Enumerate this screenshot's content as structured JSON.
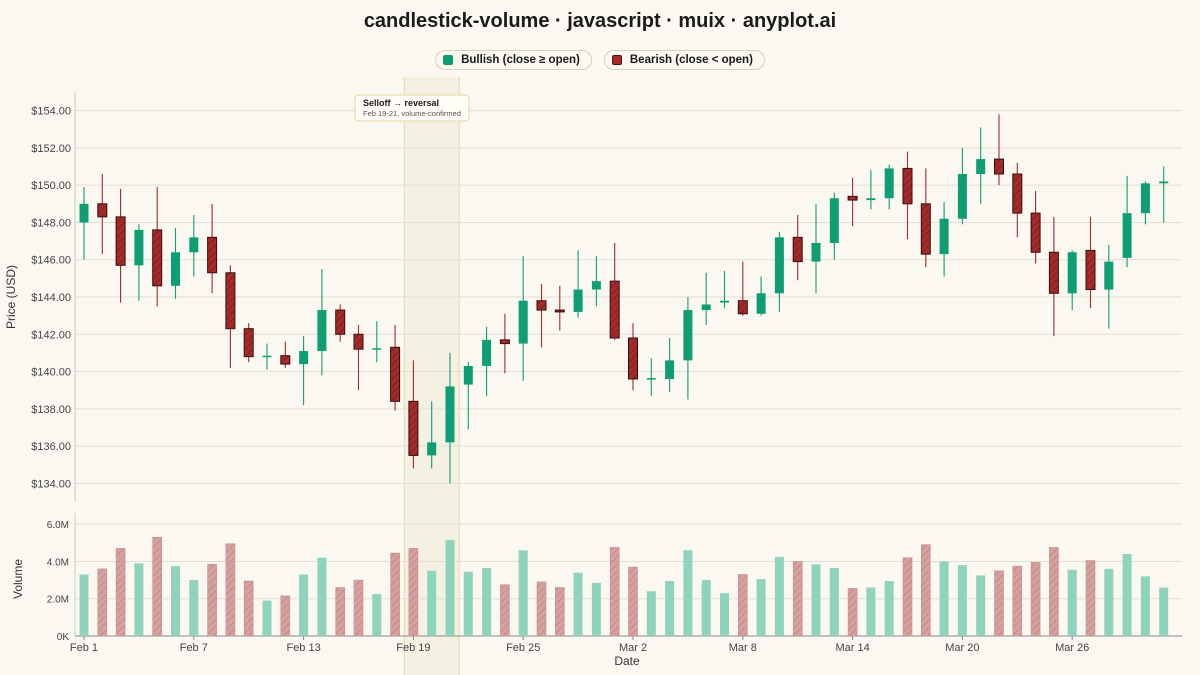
{
  "title": "candlestick-volume · javascript · muix · anyplot.ai",
  "legend": {
    "bullish_label": "Bullish (close ≥ open)",
    "bearish_label": "Bearish (close < open)"
  },
  "colors": {
    "bullish": "#0E9E74",
    "bearish": "#A52A2A",
    "bullish_volume": "#8FD3BC",
    "bearish_volume": "#D6A0A0",
    "grid": "#E3DFD4",
    "annotation_band": "#F2EEDC",
    "annotation_border": "#E2D49A"
  },
  "annotation": {
    "title": "Selloff → reversal",
    "subtitle": "Feb 19-21, volume-confirmed",
    "start_index": 18,
    "end_index": 20
  },
  "chart_data": {
    "type": "candlestick",
    "xlabel": "Date",
    "price_ylabel": "Price (USD)",
    "volume_ylabel": "Volume",
    "price_ylim": [
      133,
      155
    ],
    "volume_ylim": [
      0,
      6.6
    ],
    "price_ticks": [
      "$134.00",
      "$136.00",
      "$138.00",
      "$140.00",
      "$142.00",
      "$144.00",
      "$146.00",
      "$148.00",
      "$150.00",
      "$152.00",
      "$154.00"
    ],
    "price_tick_values": [
      134,
      136,
      138,
      140,
      142,
      144,
      146,
      148,
      150,
      152,
      154
    ],
    "volume_ticks": [
      "0K",
      "2.0M",
      "4.0M",
      "6.0M"
    ],
    "volume_tick_values": [
      0,
      2,
      4,
      6
    ],
    "x_tick_labels": [
      {
        "index": 0,
        "label": "Feb 1"
      },
      {
        "index": 6,
        "label": "Feb 7"
      },
      {
        "index": 12,
        "label": "Feb 13"
      },
      {
        "index": 18,
        "label": "Feb 19"
      },
      {
        "index": 24,
        "label": "Feb 25"
      },
      {
        "index": 30,
        "label": "Mar 2"
      },
      {
        "index": 36,
        "label": "Mar 8"
      },
      {
        "index": 42,
        "label": "Mar 14"
      },
      {
        "index": 48,
        "label": "Mar 20"
      },
      {
        "index": 54,
        "label": "Mar 26"
      }
    ],
    "candles": [
      {
        "o": 148.0,
        "h": 149.9,
        "l": 146.0,
        "c": 149.0,
        "v": 3.3
      },
      {
        "o": 149.0,
        "h": 150.6,
        "l": 146.3,
        "c": 148.3,
        "v": 3.6
      },
      {
        "o": 148.3,
        "h": 149.8,
        "l": 143.7,
        "c": 145.7,
        "v": 4.7
      },
      {
        "o": 145.7,
        "h": 147.9,
        "l": 143.8,
        "c": 147.6,
        "v": 3.9
      },
      {
        "o": 147.6,
        "h": 149.9,
        "l": 143.5,
        "c": 144.6,
        "v": 5.3
      },
      {
        "o": 144.6,
        "h": 147.7,
        "l": 143.9,
        "c": 146.4,
        "v": 3.75
      },
      {
        "o": 146.4,
        "h": 148.4,
        "l": 145.1,
        "c": 147.2,
        "v": 3.0
      },
      {
        "o": 147.2,
        "h": 149.0,
        "l": 144.2,
        "c": 145.3,
        "v": 3.85
      },
      {
        "o": 145.3,
        "h": 145.7,
        "l": 140.2,
        "c": 142.3,
        "v": 4.95
      },
      {
        "o": 142.3,
        "h": 142.6,
        "l": 140.5,
        "c": 140.8,
        "v": 2.95
      },
      {
        "o": 140.8,
        "h": 141.5,
        "l": 140.1,
        "c": 140.85,
        "v": 1.9
      },
      {
        "o": 140.85,
        "h": 141.6,
        "l": 140.2,
        "c": 140.4,
        "v": 2.15
      },
      {
        "o": 140.4,
        "h": 141.9,
        "l": 138.2,
        "c": 141.1,
        "v": 3.3
      },
      {
        "o": 141.1,
        "h": 145.5,
        "l": 139.8,
        "c": 143.3,
        "v": 4.2
      },
      {
        "o": 143.3,
        "h": 143.6,
        "l": 141.6,
        "c": 142.0,
        "v": 2.6
      },
      {
        "o": 142.0,
        "h": 142.5,
        "l": 139.0,
        "c": 141.2,
        "v": 3.0
      },
      {
        "o": 141.2,
        "h": 142.7,
        "l": 140.5,
        "c": 141.25,
        "v": 2.25
      },
      {
        "o": 141.3,
        "h": 142.5,
        "l": 137.9,
        "c": 138.4,
        "v": 4.45
      },
      {
        "o": 138.4,
        "h": 140.6,
        "l": 134.8,
        "c": 135.5,
        "v": 4.7
      },
      {
        "o": 135.5,
        "h": 138.4,
        "l": 134.8,
        "c": 136.2,
        "v": 3.5
      },
      {
        "o": 136.2,
        "h": 141.0,
        "l": 134.0,
        "c": 139.2,
        "v": 5.15
      },
      {
        "o": 139.3,
        "h": 140.5,
        "l": 136.9,
        "c": 140.3,
        "v": 3.45
      },
      {
        "o": 140.3,
        "h": 142.4,
        "l": 138.7,
        "c": 141.7,
        "v": 3.65
      },
      {
        "o": 141.7,
        "h": 143.1,
        "l": 139.9,
        "c": 141.5,
        "v": 2.75
      },
      {
        "o": 141.5,
        "h": 146.2,
        "l": 139.5,
        "c": 143.8,
        "v": 4.6
      },
      {
        "o": 143.8,
        "h": 144.7,
        "l": 141.3,
        "c": 143.3,
        "v": 2.9
      },
      {
        "o": 143.3,
        "h": 144.6,
        "l": 142.2,
        "c": 143.2,
        "v": 2.6
      },
      {
        "o": 143.2,
        "h": 146.5,
        "l": 142.9,
        "c": 144.4,
        "v": 3.4
      },
      {
        "o": 144.4,
        "h": 146.2,
        "l": 143.5,
        "c": 144.85,
        "v": 2.85
      },
      {
        "o": 144.85,
        "h": 146.9,
        "l": 141.7,
        "c": 141.8,
        "v": 4.75
      },
      {
        "o": 141.8,
        "h": 142.6,
        "l": 139.0,
        "c": 139.6,
        "v": 3.7
      },
      {
        "o": 139.6,
        "h": 140.7,
        "l": 138.7,
        "c": 139.65,
        "v": 2.4
      },
      {
        "o": 139.6,
        "h": 141.8,
        "l": 138.9,
        "c": 140.6,
        "v": 2.95
      },
      {
        "o": 140.6,
        "h": 144.0,
        "l": 138.5,
        "c": 143.3,
        "v": 4.6
      },
      {
        "o": 143.3,
        "h": 145.3,
        "l": 142.5,
        "c": 143.6,
        "v": 3.0
      },
      {
        "o": 143.7,
        "h": 145.4,
        "l": 143.4,
        "c": 143.8,
        "v": 2.3
      },
      {
        "o": 143.8,
        "h": 145.9,
        "l": 143.0,
        "c": 143.1,
        "v": 3.3
      },
      {
        "o": 143.1,
        "h": 145.1,
        "l": 143.0,
        "c": 144.2,
        "v": 3.05
      },
      {
        "o": 144.2,
        "h": 147.5,
        "l": 143.2,
        "c": 147.2,
        "v": 4.25
      },
      {
        "o": 147.2,
        "h": 148.4,
        "l": 144.9,
        "c": 145.9,
        "v": 4.0
      },
      {
        "o": 145.9,
        "h": 149.0,
        "l": 144.2,
        "c": 146.9,
        "v": 3.85
      },
      {
        "o": 146.9,
        "h": 149.6,
        "l": 146.0,
        "c": 149.3,
        "v": 3.65
      },
      {
        "o": 149.4,
        "h": 150.4,
        "l": 147.8,
        "c": 149.2,
        "v": 2.55
      },
      {
        "o": 149.2,
        "h": 150.8,
        "l": 148.7,
        "c": 149.3,
        "v": 2.6
      },
      {
        "o": 149.3,
        "h": 151.1,
        "l": 148.7,
        "c": 150.9,
        "v": 2.95
      },
      {
        "o": 150.9,
        "h": 151.8,
        "l": 147.1,
        "c": 149.0,
        "v": 4.2
      },
      {
        "o": 149.0,
        "h": 150.9,
        "l": 145.6,
        "c": 146.3,
        "v": 4.9
      },
      {
        "o": 146.3,
        "h": 149.1,
        "l": 145.1,
        "c": 148.2,
        "v": 4.0
      },
      {
        "o": 148.2,
        "h": 152.0,
        "l": 147.9,
        "c": 150.6,
        "v": 3.8
      },
      {
        "o": 150.6,
        "h": 153.1,
        "l": 149.0,
        "c": 151.4,
        "v": 3.25
      },
      {
        "o": 151.4,
        "h": 153.8,
        "l": 150.0,
        "c": 150.6,
        "v": 3.5
      },
      {
        "o": 150.6,
        "h": 151.2,
        "l": 147.2,
        "c": 148.5,
        "v": 3.75
      },
      {
        "o": 148.5,
        "h": 149.7,
        "l": 145.8,
        "c": 146.4,
        "v": 3.95
      },
      {
        "o": 146.4,
        "h": 148.3,
        "l": 141.9,
        "c": 144.2,
        "v": 4.75
      },
      {
        "o": 144.2,
        "h": 146.5,
        "l": 143.3,
        "c": 146.4,
        "v": 3.55
      },
      {
        "o": 146.5,
        "h": 148.3,
        "l": 143.4,
        "c": 144.4,
        "v": 4.05
      },
      {
        "o": 144.4,
        "h": 146.8,
        "l": 142.3,
        "c": 145.9,
        "v": 3.6
      },
      {
        "o": 146.1,
        "h": 150.5,
        "l": 145.6,
        "c": 148.5,
        "v": 4.4
      },
      {
        "o": 148.5,
        "h": 150.2,
        "l": 147.9,
        "c": 150.1,
        "v": 3.2
      },
      {
        "o": 150.1,
        "h": 151.0,
        "l": 148.0,
        "c": 150.2,
        "v": 2.6
      }
    ]
  }
}
